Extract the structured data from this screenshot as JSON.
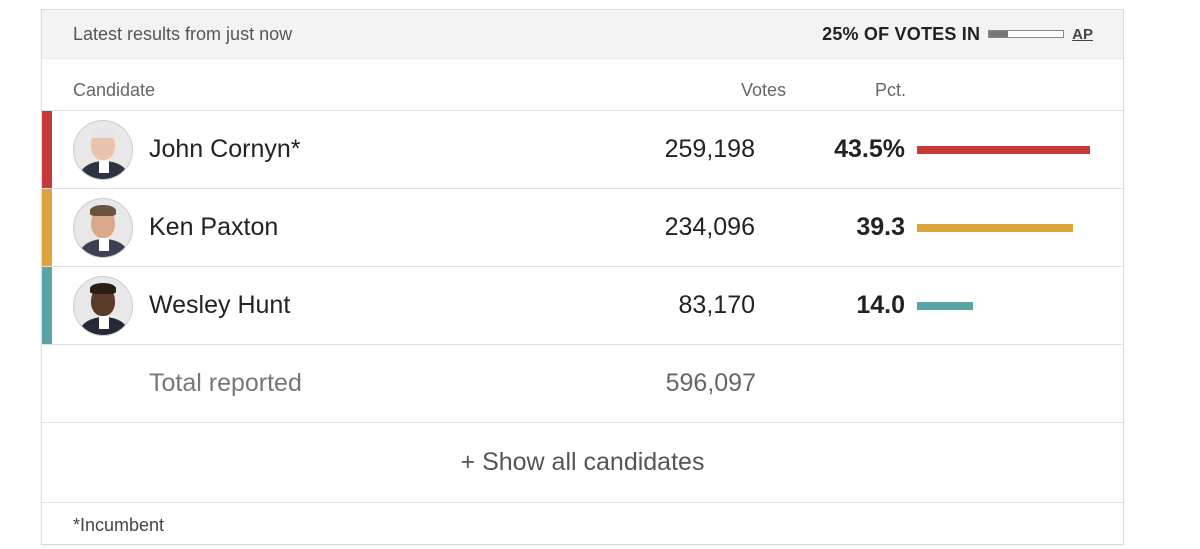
{
  "topbar": {
    "updated": "Latest results from just now",
    "votes_in": "25% OF VOTES IN",
    "votes_in_fraction": 0.25,
    "source": "AP"
  },
  "columns": {
    "candidate": "Candidate",
    "votes": "Votes",
    "pct": "Pct."
  },
  "candidates": [
    {
      "name": "John Cornyn*",
      "votes": "259,198",
      "pct": "43.5%",
      "pct_value": 43.5,
      "color": "#c73a3a",
      "skin": "#e9c3ad",
      "hair": "#e6e6e6",
      "suit": "#2c3444"
    },
    {
      "name": "Ken Paxton",
      "votes": "234,096",
      "pct": "39.3",
      "pct_value": 39.3,
      "color": "#dca43a",
      "skin": "#d9a98c",
      "hair": "#6b5140",
      "suit": "#3b4150"
    },
    {
      "name": "Wesley Hunt",
      "votes": "83,170",
      "pct": "14.0",
      "pct_value": 14.0,
      "color": "#58a4a6",
      "skin": "#5a3a28",
      "hair": "#2a1d15",
      "suit": "#222a38"
    }
  ],
  "total": {
    "label": "Total reported",
    "votes": "596,097"
  },
  "show_all": "+ Show all candidates",
  "footnote": "*Incumbent"
}
